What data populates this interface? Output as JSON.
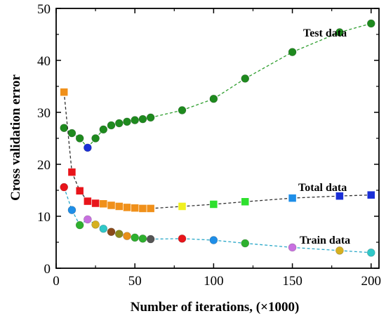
{
  "chart_data": {
    "type": "line",
    "xlabel": "Number of iterations, (×1000)",
    "ylabel": "Cross validation error",
    "xlim": [
      0,
      205
    ],
    "ylim": [
      0,
      50
    ],
    "xticks": [
      0,
      50,
      100,
      150,
      200
    ],
    "yticks": [
      0,
      10,
      20,
      30,
      40,
      50
    ],
    "grid": false,
    "series": [
      {
        "name": "Test data",
        "marker": "circle",
        "line_color": "#2e9e2e",
        "line_style": "dashed",
        "points": [
          {
            "x": 5,
            "y": 27.0,
            "color": "#1e8a1e"
          },
          {
            "x": 10,
            "y": 26.0,
            "color": "#1e8a1e"
          },
          {
            "x": 15,
            "y": 25.0,
            "color": "#1e8a1e"
          },
          {
            "x": 20,
            "y": 23.2,
            "color": "#1a2fd6"
          },
          {
            "x": 25,
            "y": 25.0,
            "color": "#1e8a1e"
          },
          {
            "x": 30,
            "y": 26.7,
            "color": "#1e8a1e"
          },
          {
            "x": 35,
            "y": 27.5,
            "color": "#1e8a1e"
          },
          {
            "x": 40,
            "y": 27.9,
            "color": "#1e8a1e"
          },
          {
            "x": 45,
            "y": 28.2,
            "color": "#1e8a1e"
          },
          {
            "x": 50,
            "y": 28.5,
            "color": "#1e8a1e"
          },
          {
            "x": 55,
            "y": 28.7,
            "color": "#1e8a1e"
          },
          {
            "x": 60,
            "y": 29.0,
            "color": "#1e8a1e"
          },
          {
            "x": 80,
            "y": 30.4,
            "color": "#1e8a1e"
          },
          {
            "x": 100,
            "y": 32.6,
            "color": "#1e8a1e"
          },
          {
            "x": 120,
            "y": 36.5,
            "color": "#1e8a1e"
          },
          {
            "x": 150,
            "y": 41.6,
            "color": "#1e8a1e"
          },
          {
            "x": 180,
            "y": 45.4,
            "color": "#1e8a1e"
          },
          {
            "x": 200,
            "y": 47.1,
            "color": "#1e8a1e"
          }
        ]
      },
      {
        "name": "Total data",
        "marker": "square",
        "line_color": "#333333",
        "line_style": "dashed",
        "points": [
          {
            "x": 5,
            "y": 33.9,
            "color": "#f0901a"
          },
          {
            "x": 10,
            "y": 18.5,
            "color": "#e8141a"
          },
          {
            "x": 15,
            "y": 14.9,
            "color": "#e8141a"
          },
          {
            "x": 20,
            "y": 12.9,
            "color": "#e8141a"
          },
          {
            "x": 25,
            "y": 12.5,
            "color": "#e8141a"
          },
          {
            "x": 30,
            "y": 12.4,
            "color": "#f0901a"
          },
          {
            "x": 35,
            "y": 12.1,
            "color": "#f0901a"
          },
          {
            "x": 40,
            "y": 11.9,
            "color": "#f0901a"
          },
          {
            "x": 45,
            "y": 11.7,
            "color": "#f0901a"
          },
          {
            "x": 50,
            "y": 11.6,
            "color": "#f0901a"
          },
          {
            "x": 55,
            "y": 11.5,
            "color": "#f0901a"
          },
          {
            "x": 60,
            "y": 11.5,
            "color": "#f0901a"
          },
          {
            "x": 80,
            "y": 11.9,
            "color": "#f0f020"
          },
          {
            "x": 100,
            "y": 12.3,
            "color": "#2ee02e"
          },
          {
            "x": 120,
            "y": 12.8,
            "color": "#2ee02e"
          },
          {
            "x": 150,
            "y": 13.5,
            "color": "#1e8ee8"
          },
          {
            "x": 180,
            "y": 13.9,
            "color": "#1a2fd6"
          },
          {
            "x": 200,
            "y": 14.1,
            "color": "#1a2fd6"
          }
        ]
      },
      {
        "name": "Train data",
        "marker": "circle",
        "line_color": "#2aa8c8",
        "line_style": "dashed",
        "points": [
          {
            "x": 5,
            "y": 15.6,
            "color": "#e8141a"
          },
          {
            "x": 10,
            "y": 11.2,
            "color": "#1e8ee8"
          },
          {
            "x": 15,
            "y": 8.3,
            "color": "#2eb02e"
          },
          {
            "x": 20,
            "y": 9.4,
            "color": "#c870e0"
          },
          {
            "x": 25,
            "y": 8.4,
            "color": "#d6b020"
          },
          {
            "x": 30,
            "y": 7.6,
            "color": "#30c8c8"
          },
          {
            "x": 35,
            "y": 7.0,
            "color": "#8a4a1a"
          },
          {
            "x": 40,
            "y": 6.6,
            "color": "#8a8a1a"
          },
          {
            "x": 45,
            "y": 6.2,
            "color": "#e8901a"
          },
          {
            "x": 50,
            "y": 5.9,
            "color": "#2eb02e"
          },
          {
            "x": 55,
            "y": 5.7,
            "color": "#2eb02e"
          },
          {
            "x": 60,
            "y": 5.6,
            "color": "#555555"
          },
          {
            "x": 80,
            "y": 5.7,
            "color": "#e8141a"
          },
          {
            "x": 100,
            "y": 5.4,
            "color": "#1e8ee8"
          },
          {
            "x": 120,
            "y": 4.8,
            "color": "#2eb02e"
          },
          {
            "x": 150,
            "y": 4.0,
            "color": "#c870e0"
          },
          {
            "x": 180,
            "y": 3.4,
            "color": "#d6b020"
          },
          {
            "x": 200,
            "y": 3.0,
            "color": "#30c8c8"
          }
        ]
      }
    ]
  }
}
